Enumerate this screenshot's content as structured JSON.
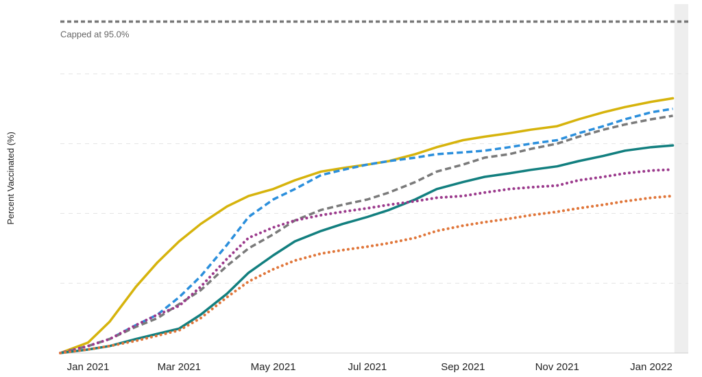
{
  "chart_data": {
    "type": "line",
    "title": "",
    "xlabel": "",
    "ylabel": "Percent Vaccinated (%)",
    "x_range": [
      "2020-12-14",
      "2022-01-25"
    ],
    "ylim": [
      0,
      100
    ],
    "y_gridlines": [
      20,
      40,
      60,
      80
    ],
    "grid": "horizontal-dashed",
    "legend": "none",
    "x_ticks": [
      {
        "date": "2021-01-01",
        "label": "Jan 2021"
      },
      {
        "date": "2021-03-01",
        "label": "Mar 2021"
      },
      {
        "date": "2021-05-01",
        "label": "May 2021"
      },
      {
        "date": "2021-07-01",
        "label": "Jul 2021"
      },
      {
        "date": "2021-09-01",
        "label": "Sep 2021"
      },
      {
        "date": "2021-11-01",
        "label": "Nov 2021"
      },
      {
        "date": "2022-01-01",
        "label": "Jan 2022"
      }
    ],
    "cap_line": {
      "value": 95,
      "label": "Capped at 95.0%",
      "color": "#777777",
      "style": "dashed"
    },
    "shaded_period": {
      "start": "2022-01-16",
      "end": "2022-01-25",
      "color": "#eeeeee"
    },
    "series": [
      {
        "color": "#d6b30c",
        "style": "solid",
        "points": [
          [
            "2020-12-14",
            0
          ],
          [
            "2021-01-01",
            3
          ],
          [
            "2021-01-15",
            9
          ],
          [
            "2021-02-01",
            19
          ],
          [
            "2021-02-15",
            26
          ],
          [
            "2021-03-01",
            32
          ],
          [
            "2021-03-15",
            37
          ],
          [
            "2021-04-01",
            42
          ],
          [
            "2021-04-15",
            45
          ],
          [
            "2021-05-01",
            47
          ],
          [
            "2021-05-15",
            49.5
          ],
          [
            "2021-06-01",
            52
          ],
          [
            "2021-06-15",
            53
          ],
          [
            "2021-07-01",
            54
          ],
          [
            "2021-07-15",
            55
          ],
          [
            "2021-08-01",
            57
          ],
          [
            "2021-08-15",
            59
          ],
          [
            "2021-09-01",
            61
          ],
          [
            "2021-09-15",
            62
          ],
          [
            "2021-10-01",
            63
          ],
          [
            "2021-10-15",
            64
          ],
          [
            "2021-11-01",
            65
          ],
          [
            "2021-11-15",
            67
          ],
          [
            "2021-12-01",
            69
          ],
          [
            "2021-12-15",
            70.5
          ],
          [
            "2022-01-01",
            72
          ],
          [
            "2022-01-15",
            73
          ]
        ]
      },
      {
        "color": "#2b8fdc",
        "style": "dashed",
        "points": [
          [
            "2020-12-14",
            0
          ],
          [
            "2021-01-01",
            2
          ],
          [
            "2021-01-15",
            4
          ],
          [
            "2021-02-01",
            8
          ],
          [
            "2021-02-15",
            11
          ],
          [
            "2021-03-01",
            16
          ],
          [
            "2021-03-15",
            22
          ],
          [
            "2021-04-01",
            31
          ],
          [
            "2021-04-15",
            39
          ],
          [
            "2021-05-01",
            44
          ],
          [
            "2021-05-15",
            47
          ],
          [
            "2021-06-01",
            51
          ],
          [
            "2021-06-15",
            52.5
          ],
          [
            "2021-07-01",
            54
          ],
          [
            "2021-07-15",
            55
          ],
          [
            "2021-08-01",
            56
          ],
          [
            "2021-08-15",
            57
          ],
          [
            "2021-09-01",
            57.5
          ],
          [
            "2021-09-15",
            58
          ],
          [
            "2021-10-01",
            59
          ],
          [
            "2021-10-15",
            60
          ],
          [
            "2021-11-01",
            61
          ],
          [
            "2021-11-15",
            63
          ],
          [
            "2021-12-01",
            65
          ],
          [
            "2021-12-15",
            67
          ],
          [
            "2022-01-01",
            69
          ],
          [
            "2022-01-15",
            70
          ]
        ]
      },
      {
        "color": "#7a7a7a",
        "style": "dashed",
        "points": [
          [
            "2020-12-14",
            0
          ],
          [
            "2021-01-01",
            2
          ],
          [
            "2021-01-15",
            4
          ],
          [
            "2021-02-01",
            7.5
          ],
          [
            "2021-02-15",
            10
          ],
          [
            "2021-03-01",
            14
          ],
          [
            "2021-03-15",
            18
          ],
          [
            "2021-04-01",
            25
          ],
          [
            "2021-04-15",
            30
          ],
          [
            "2021-05-01",
            34
          ],
          [
            "2021-05-15",
            38
          ],
          [
            "2021-06-01",
            41
          ],
          [
            "2021-06-15",
            42.5
          ],
          [
            "2021-07-01",
            44
          ],
          [
            "2021-07-15",
            46
          ],
          [
            "2021-08-01",
            49
          ],
          [
            "2021-08-15",
            52
          ],
          [
            "2021-09-01",
            54
          ],
          [
            "2021-09-15",
            56
          ],
          [
            "2021-10-01",
            57
          ],
          [
            "2021-10-15",
            58.5
          ],
          [
            "2021-11-01",
            60
          ],
          [
            "2021-11-15",
            62
          ],
          [
            "2021-12-01",
            64
          ],
          [
            "2021-12-15",
            65.5
          ],
          [
            "2022-01-01",
            67
          ],
          [
            "2022-01-15",
            68
          ]
        ]
      },
      {
        "color": "#127f7f",
        "style": "solid",
        "points": [
          [
            "2020-12-14",
            0
          ],
          [
            "2021-01-01",
            1
          ],
          [
            "2021-01-15",
            2
          ],
          [
            "2021-02-01",
            4
          ],
          [
            "2021-02-15",
            5.5
          ],
          [
            "2021-03-01",
            7
          ],
          [
            "2021-03-15",
            11
          ],
          [
            "2021-04-01",
            17
          ],
          [
            "2021-04-15",
            23
          ],
          [
            "2021-05-01",
            28
          ],
          [
            "2021-05-15",
            32
          ],
          [
            "2021-06-01",
            35
          ],
          [
            "2021-06-15",
            37
          ],
          [
            "2021-07-01",
            39
          ],
          [
            "2021-07-15",
            41
          ],
          [
            "2021-08-01",
            44
          ],
          [
            "2021-08-15",
            47
          ],
          [
            "2021-09-01",
            49
          ],
          [
            "2021-09-15",
            50.5
          ],
          [
            "2021-10-01",
            51.5
          ],
          [
            "2021-10-15",
            52.5
          ],
          [
            "2021-11-01",
            53.5
          ],
          [
            "2021-11-15",
            55
          ],
          [
            "2021-12-01",
            56.5
          ],
          [
            "2021-12-15",
            58
          ],
          [
            "2022-01-01",
            59
          ],
          [
            "2022-01-15",
            59.5
          ]
        ]
      },
      {
        "color": "#9b3a8c",
        "style": "dotted",
        "points": [
          [
            "2020-12-14",
            0
          ],
          [
            "2021-01-01",
            2
          ],
          [
            "2021-01-15",
            4
          ],
          [
            "2021-02-01",
            8
          ],
          [
            "2021-02-15",
            11
          ],
          [
            "2021-03-01",
            13.5
          ],
          [
            "2021-03-15",
            19
          ],
          [
            "2021-04-01",
            27
          ],
          [
            "2021-04-15",
            33
          ],
          [
            "2021-05-01",
            36
          ],
          [
            "2021-05-15",
            38
          ],
          [
            "2021-06-01",
            39.5
          ],
          [
            "2021-06-15",
            40.5
          ],
          [
            "2021-07-01",
            41.5
          ],
          [
            "2021-07-15",
            42.5
          ],
          [
            "2021-08-01",
            43.5
          ],
          [
            "2021-08-15",
            44.5
          ],
          [
            "2021-09-01",
            45
          ],
          [
            "2021-09-15",
            46
          ],
          [
            "2021-10-01",
            47
          ],
          [
            "2021-10-15",
            47.5
          ],
          [
            "2021-11-01",
            48
          ],
          [
            "2021-11-15",
            49.5
          ],
          [
            "2021-12-01",
            50.5
          ],
          [
            "2021-12-15",
            51.5
          ],
          [
            "2022-01-01",
            52.3
          ],
          [
            "2022-01-15",
            52.6
          ]
        ]
      },
      {
        "color": "#e0763a",
        "style": "dotted",
        "points": [
          [
            "2020-12-14",
            0
          ],
          [
            "2021-01-01",
            1
          ],
          [
            "2021-01-15",
            2
          ],
          [
            "2021-02-01",
            3.5
          ],
          [
            "2021-02-15",
            5
          ],
          [
            "2021-03-01",
            6.5
          ],
          [
            "2021-03-15",
            10
          ],
          [
            "2021-04-01",
            16
          ],
          [
            "2021-04-15",
            20.5
          ],
          [
            "2021-05-01",
            24
          ],
          [
            "2021-05-15",
            26.5
          ],
          [
            "2021-06-01",
            28.5
          ],
          [
            "2021-06-15",
            29.5
          ],
          [
            "2021-07-01",
            30.5
          ],
          [
            "2021-07-15",
            31.5
          ],
          [
            "2021-08-01",
            33
          ],
          [
            "2021-08-15",
            35
          ],
          [
            "2021-09-01",
            36.5
          ],
          [
            "2021-09-15",
            37.5
          ],
          [
            "2021-10-01",
            38.5
          ],
          [
            "2021-10-15",
            39.5
          ],
          [
            "2021-11-01",
            40.5
          ],
          [
            "2021-11-15",
            41.5
          ],
          [
            "2021-12-01",
            42.5
          ],
          [
            "2021-12-15",
            43.5
          ],
          [
            "2022-01-01",
            44.5
          ],
          [
            "2022-01-15",
            45
          ]
        ]
      }
    ]
  }
}
